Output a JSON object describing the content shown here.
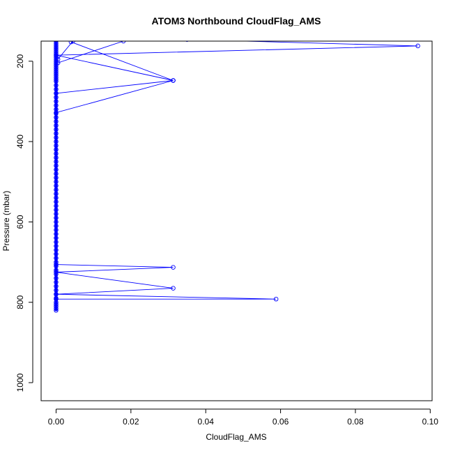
{
  "chart_data": {
    "type": "line",
    "title": "ATOM3 Northbound CloudFlag_AMS",
    "xlabel": "CloudFlag_AMS",
    "ylabel": "Pressure (mbar)",
    "xlim": [
      -0.004,
      0.1005
    ],
    "ylim": [
      1045,
      150
    ],
    "y_reversed": true,
    "grid": false,
    "series_color": "#0000ff",
    "xticks": [
      {
        "value": 0.0,
        "label": "0.00"
      },
      {
        "value": 0.02,
        "label": "0.02"
      },
      {
        "value": 0.04,
        "label": "0.04"
      },
      {
        "value": 0.06,
        "label": "0.06"
      },
      {
        "value": 0.08,
        "label": "0.08"
      },
      {
        "value": 0.1,
        "label": "0.10"
      }
    ],
    "yticks": [
      {
        "value": 200,
        "label": "200"
      },
      {
        "value": 400,
        "label": "400"
      },
      {
        "value": 600,
        "label": "600"
      },
      {
        "value": 800,
        "label": "800"
      },
      {
        "value": 1000,
        "label": "1000"
      }
    ],
    "series": [
      {
        "x": [
          0.035,
          0.0967,
          0,
          0.0313,
          0,
          0.0313,
          0,
          0,
          0.0313,
          0,
          0.0313,
          0,
          0.0588,
          0
        ],
        "y": [
          146,
          162,
          185,
          248,
          280,
          248,
          328,
          706,
          713,
          725,
          765,
          780,
          792,
          792
        ]
      },
      {
        "x": [
          0.018,
          0.0005
        ],
        "y": [
          150,
          204
        ]
      },
      {
        "x": [
          0.0045,
          0.0005
        ],
        "y": [
          150,
          195
        ]
      },
      {
        "x": [
          0.004,
          0.0313
        ],
        "y": [
          152,
          248
        ]
      },
      {
        "x": [
          0,
          0,
          0,
          0,
          0,
          0,
          0,
          0,
          0,
          0,
          0,
          0,
          0,
          0,
          0,
          0,
          0,
          0,
          0,
          0,
          0,
          0,
          0,
          0,
          0,
          0,
          0,
          0,
          0,
          0,
          0,
          0,
          0,
          0,
          0,
          0,
          0,
          0,
          0,
          0,
          0,
          0,
          0,
          0,
          0,
          0,
          0,
          0,
          0,
          0,
          0,
          0,
          0,
          0,
          0,
          0,
          0,
          0,
          0,
          0,
          0,
          0,
          0,
          0,
          0,
          0,
          0,
          0,
          0,
          0,
          0,
          0,
          0,
          0,
          0,
          0,
          0,
          0,
          0,
          0
        ],
        "y": [
          150,
          160,
          170,
          180,
          190,
          200,
          210,
          220,
          230,
          240,
          250,
          260,
          270,
          280,
          290,
          300,
          310,
          320,
          330,
          340,
          350,
          360,
          370,
          380,
          390,
          400,
          410,
          420,
          430,
          440,
          450,
          460,
          470,
          480,
          490,
          500,
          510,
          520,
          530,
          540,
          550,
          560,
          570,
          580,
          590,
          600,
          610,
          620,
          630,
          640,
          650,
          660,
          670,
          680,
          690,
          700,
          710,
          720,
          730,
          740,
          750,
          760,
          770,
          780,
          790,
          800,
          805,
          810,
          815,
          820,
          155,
          165,
          175,
          185,
          195,
          205,
          215,
          225,
          235,
          245
        ]
      }
    ]
  }
}
